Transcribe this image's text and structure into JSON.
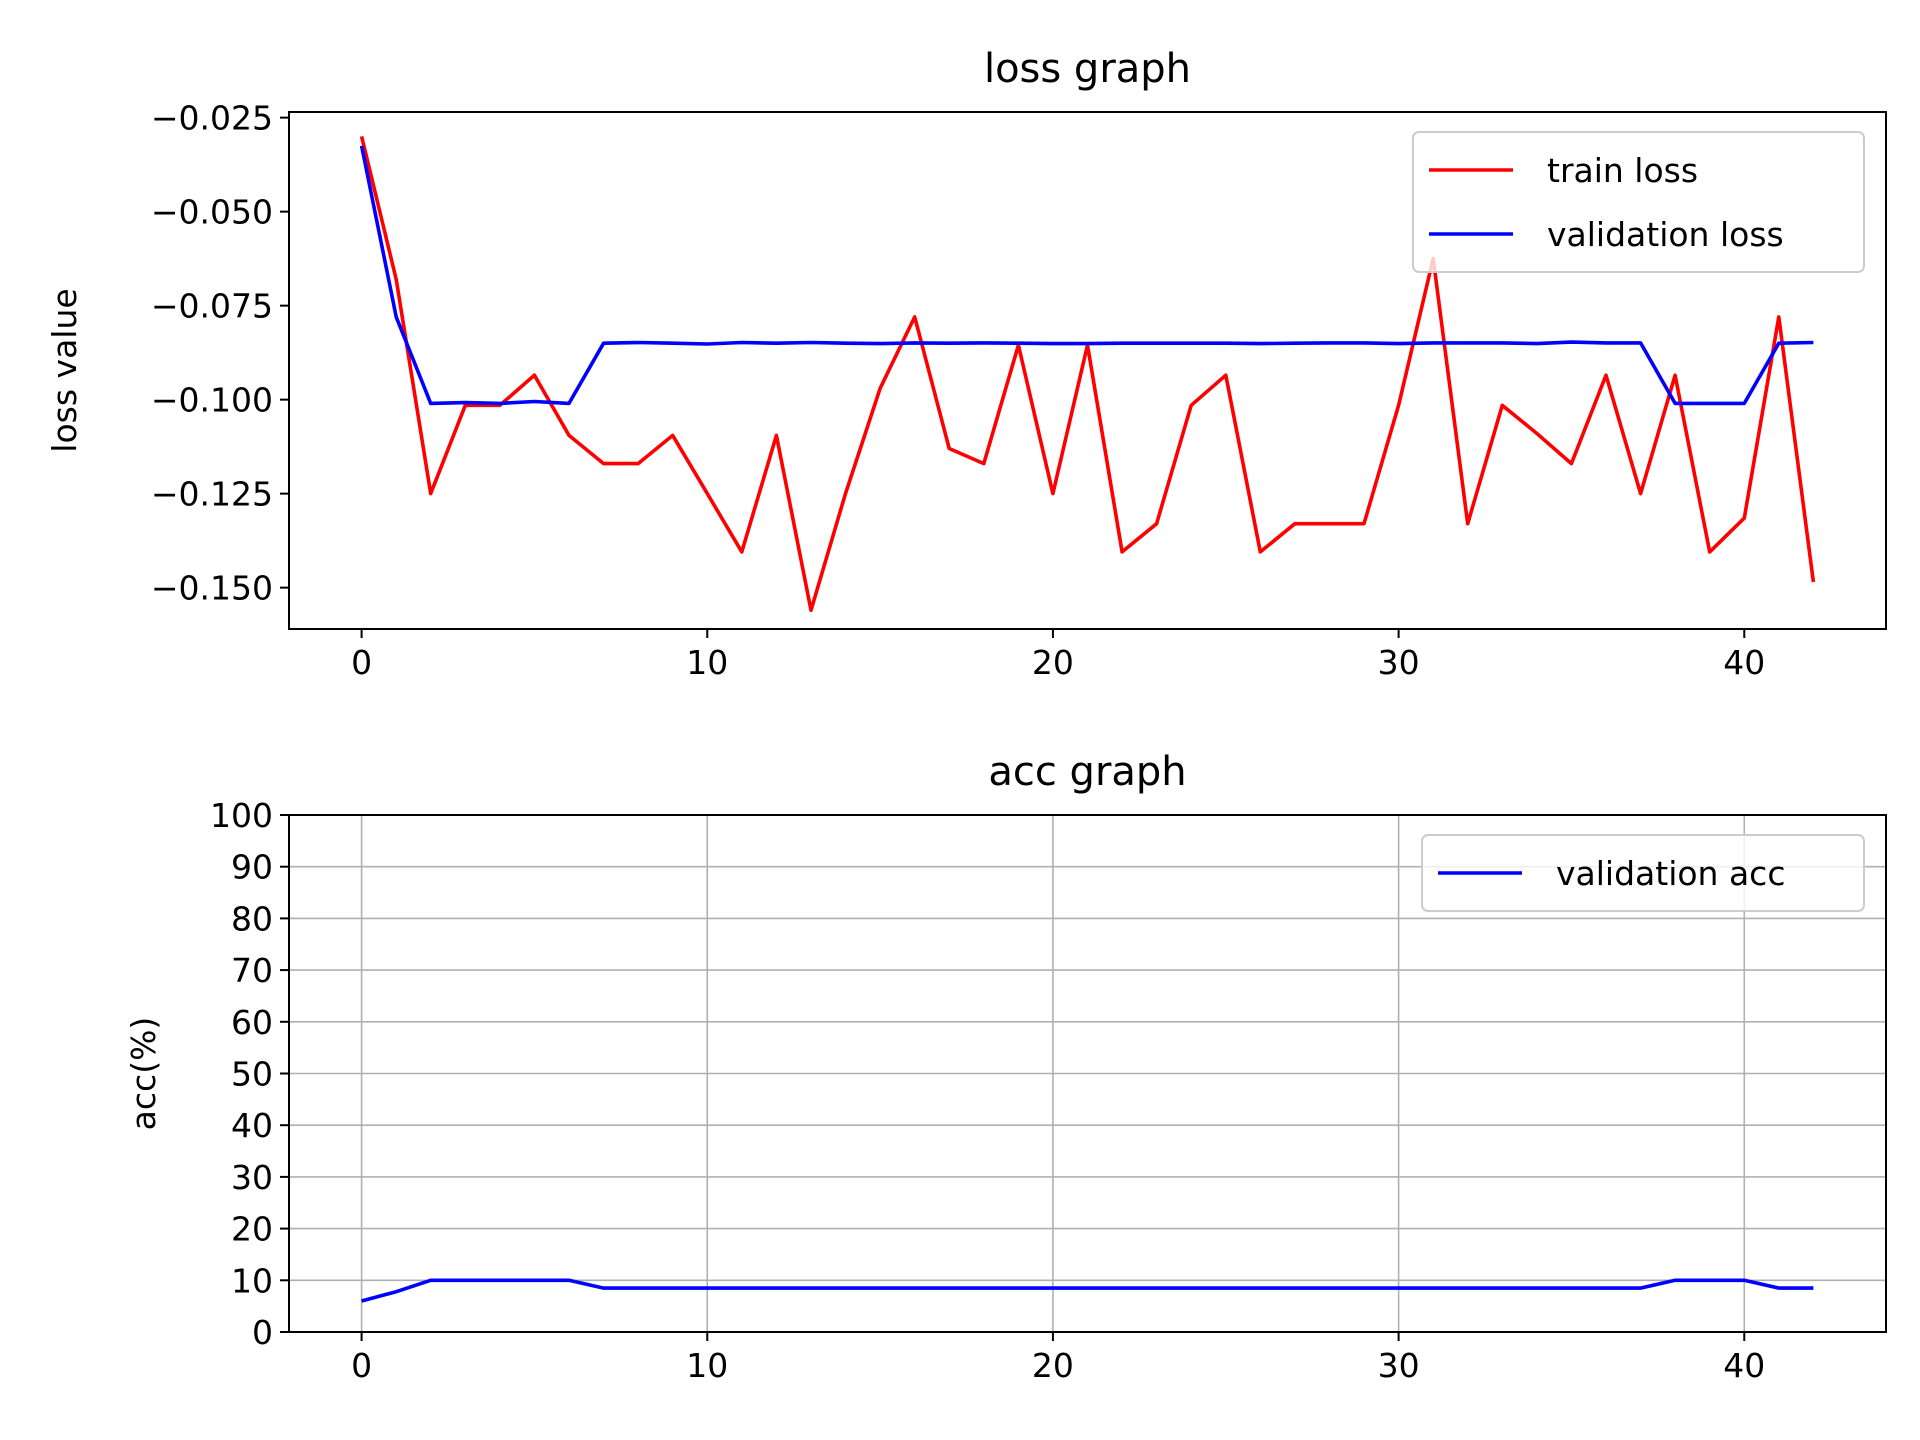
{
  "chart_data": [
    {
      "type": "line",
      "title": "loss graph",
      "xlabel": "",
      "ylabel": "loss value",
      "xlim": [
        -2.1,
        44.1
      ],
      "ylim": [
        -0.161,
        -0.0235
      ],
      "xticks": [
        0,
        10,
        20,
        30,
        40
      ],
      "yticks": [
        -0.025,
        -0.05,
        -0.075,
        -0.1,
        -0.125,
        -0.15
      ],
      "grid": false,
      "legend_position": "upper right",
      "x": [
        0,
        1,
        2,
        3,
        4,
        5,
        6,
        7,
        8,
        9,
        10,
        11,
        12,
        13,
        14,
        15,
        16,
        17,
        18,
        19,
        20,
        21,
        22,
        23,
        24,
        25,
        26,
        27,
        28,
        29,
        30,
        31,
        32,
        33,
        34,
        35,
        36,
        37,
        38,
        39,
        40,
        41,
        42
      ],
      "series": [
        {
          "name": "train loss",
          "color": "#ff0000",
          "values": [
            -0.03,
            -0.068,
            -0.125,
            -0.1015,
            -0.1015,
            -0.0935,
            -0.1095,
            -0.117,
            -0.117,
            -0.1095,
            -0.125,
            -0.1405,
            -0.1095,
            -0.156,
            -0.125,
            -0.097,
            -0.078,
            -0.113,
            -0.117,
            -0.0855,
            -0.125,
            -0.0855,
            -0.1405,
            -0.133,
            -0.1015,
            -0.0935,
            -0.1405,
            -0.133,
            -0.133,
            -0.133,
            -0.1015,
            -0.0625,
            -0.133,
            -0.1015,
            -0.109,
            -0.117,
            -0.0935,
            -0.125,
            -0.0935,
            -0.1405,
            -0.1315,
            -0.078,
            -0.1485
          ]
        },
        {
          "name": "validation loss",
          "color": "#0000ff",
          "values": [
            -0.0325,
            -0.078,
            -0.101,
            -0.1008,
            -0.101,
            -0.1005,
            -0.101,
            -0.085,
            -0.0848,
            -0.085,
            -0.0852,
            -0.0848,
            -0.085,
            -0.0848,
            -0.085,
            -0.0851,
            -0.0849,
            -0.085,
            -0.0849,
            -0.085,
            -0.0851,
            -0.0851,
            -0.085,
            -0.085,
            -0.085,
            -0.085,
            -0.0851,
            -0.085,
            -0.0849,
            -0.0849,
            -0.0851,
            -0.0849,
            -0.0849,
            -0.0849,
            -0.0851,
            -0.0847,
            -0.0849,
            -0.0849,
            -0.101,
            -0.101,
            -0.101,
            -0.085,
            -0.0848
          ]
        }
      ]
    },
    {
      "type": "line",
      "title": "acc graph",
      "xlabel": "",
      "ylabel": "acc(%)",
      "xlim": [
        -2.1,
        44.1
      ],
      "ylim": [
        0,
        100
      ],
      "xticks": [
        0,
        10,
        20,
        30,
        40
      ],
      "yticks": [
        0,
        10,
        20,
        30,
        40,
        50,
        60,
        70,
        80,
        90,
        100
      ],
      "grid": true,
      "legend_position": "upper right",
      "x": [
        0,
        1,
        2,
        3,
        4,
        5,
        6,
        7,
        8,
        9,
        10,
        11,
        12,
        13,
        14,
        15,
        16,
        17,
        18,
        19,
        20,
        21,
        22,
        23,
        24,
        25,
        26,
        27,
        28,
        29,
        30,
        31,
        32,
        33,
        34,
        35,
        36,
        37,
        38,
        39,
        40,
        41,
        42
      ],
      "series": [
        {
          "name": "validation acc",
          "color": "#0000ff",
          "values": [
            6,
            7.8,
            10,
            10,
            10,
            10,
            10,
            8.5,
            8.5,
            8.5,
            8.5,
            8.5,
            8.5,
            8.5,
            8.5,
            8.5,
            8.5,
            8.5,
            8.5,
            8.5,
            8.5,
            8.5,
            8.5,
            8.5,
            8.5,
            8.5,
            8.5,
            8.5,
            8.5,
            8.5,
            8.5,
            8.5,
            8.5,
            8.5,
            8.5,
            8.5,
            8.5,
            8.5,
            10,
            10,
            10,
            8.5,
            8.5
          ]
        }
      ]
    }
  ]
}
